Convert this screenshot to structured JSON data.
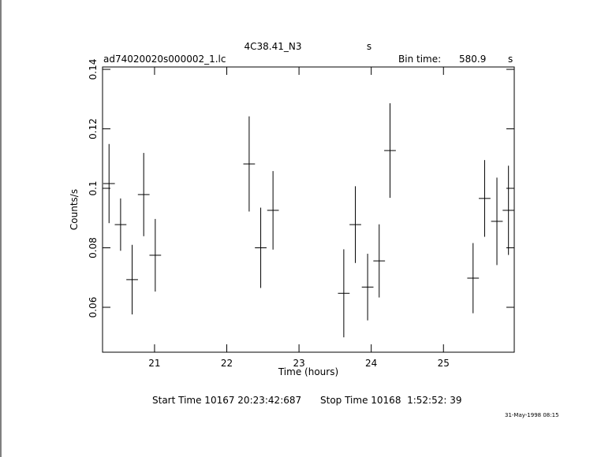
{
  "chart_data": {
    "type": "errorbar",
    "title": "4C38.41_N3",
    "title_unit": "s",
    "file_label": "ad74020020s000002_1.lc",
    "bin_time_label": "Bin time:",
    "bin_time": 580.9,
    "bin_time_unit": "s",
    "xlabel": "Time (hours)",
    "ylabel": "Counts/s",
    "x": [
      20.37,
      20.53,
      20.69,
      20.85,
      21.01,
      22.31,
      22.47,
      22.64,
      23.62,
      23.78,
      23.95,
      24.11,
      24.26,
      25.41,
      25.57,
      25.74,
      25.9
    ],
    "values": [
      0.1016,
      0.0878,
      0.0693,
      0.0979,
      0.0775,
      0.1082,
      0.08,
      0.0926,
      0.0647,
      0.0878,
      0.0668,
      0.0756,
      0.1127,
      0.0698,
      0.0966,
      0.0889,
      0.0926
    ],
    "errors": [
      0.0133,
      0.0088,
      0.0117,
      0.014,
      0.0122,
      0.016,
      0.0135,
      0.0132,
      0.0148,
      0.0129,
      0.0112,
      0.0123,
      0.0159,
      0.0118,
      0.0129,
      0.0147,
      0.015
    ],
    "color": "#000000",
    "xlim": [
      20.28,
      25.98
    ],
    "ylim": [
      0.0449,
      0.1408
    ],
    "xticks": [
      21,
      22,
      23,
      24,
      25
    ],
    "yticks": [
      0.06,
      0.08,
      0.1,
      0.12,
      0.14
    ],
    "start_time": "Start Time 10167 20:23:42:687",
    "stop_time": "Stop Time 10168  1:52:52: 39",
    "date": "31-May-1998 08:15"
  }
}
